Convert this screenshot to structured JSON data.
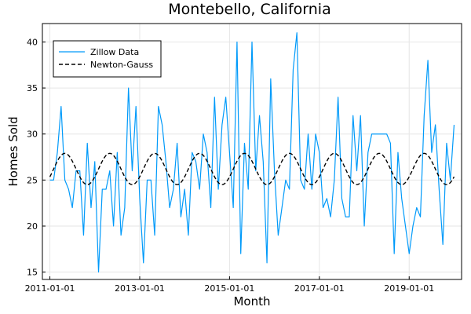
{
  "chart_data": {
    "type": "line",
    "title": "Montebello, California",
    "xlabel": "Month",
    "ylabel": "Homes Sold",
    "x_ticks": [
      "2011-01-01",
      "2013-01-01",
      "2015-01-01",
      "2017-01-01",
      "2019-01-01"
    ],
    "y_ticks": [
      15,
      20,
      25,
      30,
      35,
      40
    ],
    "xlim": [
      "2010-11-01",
      "2020-03-01"
    ],
    "ylim": [
      14.2,
      42
    ],
    "grid": true,
    "legend_position": "top-left",
    "series": [
      {
        "name": "Zillow Data",
        "style": "solid",
        "color": "#009AFA",
        "points": [
          [
            "2011-01-01",
            25
          ],
          [
            "2011-02-01",
            25
          ],
          [
            "2011-03-01",
            28
          ],
          [
            "2011-04-01",
            33
          ],
          [
            "2011-05-01",
            25
          ],
          [
            "2011-06-01",
            24
          ],
          [
            "2011-07-01",
            22
          ],
          [
            "2011-08-01",
            26
          ],
          [
            "2011-09-01",
            26
          ],
          [
            "2011-10-01",
            19
          ],
          [
            "2011-11-01",
            29
          ],
          [
            "2011-12-01",
            22
          ],
          [
            "2012-01-01",
            27
          ],
          [
            "2012-02-01",
            15
          ],
          [
            "2012-03-01",
            24
          ],
          [
            "2012-04-01",
            24
          ],
          [
            "2012-05-01",
            26
          ],
          [
            "2012-06-01",
            20
          ],
          [
            "2012-07-01",
            28
          ],
          [
            "2012-08-01",
            19
          ],
          [
            "2012-09-01",
            22
          ],
          [
            "2012-10-01",
            35
          ],
          [
            "2012-11-01",
            26
          ],
          [
            "2012-12-01",
            33
          ],
          [
            "2013-01-01",
            23
          ],
          [
            "2013-02-01",
            16
          ],
          [
            "2013-03-01",
            25
          ],
          [
            "2013-04-01",
            25
          ],
          [
            "2013-05-01",
            19
          ],
          [
            "2013-06-01",
            33
          ],
          [
            "2013-07-01",
            31
          ],
          [
            "2013-08-01",
            27
          ],
          [
            "2013-09-01",
            22
          ],
          [
            "2013-10-01",
            24
          ],
          [
            "2013-11-01",
            29
          ],
          [
            "2013-12-01",
            21
          ],
          [
            "2014-01-01",
            24
          ],
          [
            "2014-02-01",
            19
          ],
          [
            "2014-03-01",
            28
          ],
          [
            "2014-04-01",
            27
          ],
          [
            "2014-05-01",
            24
          ],
          [
            "2014-06-01",
            30
          ],
          [
            "2014-07-01",
            28
          ],
          [
            "2014-08-01",
            22
          ],
          [
            "2014-09-01",
            34
          ],
          [
            "2014-10-01",
            24
          ],
          [
            "2014-11-01",
            31
          ],
          [
            "2014-12-01",
            34
          ],
          [
            "2015-01-01",
            28
          ],
          [
            "2015-02-01",
            22
          ],
          [
            "2015-03-01",
            40
          ],
          [
            "2015-04-01",
            17
          ],
          [
            "2015-05-01",
            29
          ],
          [
            "2015-06-01",
            24
          ],
          [
            "2015-07-01",
            40
          ],
          [
            "2015-08-01",
            26
          ],
          [
            "2015-09-01",
            32
          ],
          [
            "2015-10-01",
            27
          ],
          [
            "2015-11-01",
            16
          ],
          [
            "2015-12-01",
            36
          ],
          [
            "2016-01-01",
            26
          ],
          [
            "2016-02-01",
            19
          ],
          [
            "2016-03-01",
            22
          ],
          [
            "2016-04-01",
            25
          ],
          [
            "2016-05-01",
            24
          ],
          [
            "2016-06-01",
            37
          ],
          [
            "2016-07-01",
            41
          ],
          [
            "2016-08-01",
            25
          ],
          [
            "2016-09-01",
            24
          ],
          [
            "2016-10-01",
            30
          ],
          [
            "2016-11-01",
            24
          ],
          [
            "2016-12-01",
            30
          ],
          [
            "2017-01-01",
            28
          ],
          [
            "2017-02-01",
            22
          ],
          [
            "2017-03-01",
            23
          ],
          [
            "2017-04-01",
            21
          ],
          [
            "2017-05-01",
            25
          ],
          [
            "2017-06-01",
            34
          ],
          [
            "2017-07-01",
            23
          ],
          [
            "2017-08-01",
            21
          ],
          [
            "2017-09-01",
            21
          ],
          [
            "2017-10-01",
            32
          ],
          [
            "2017-11-01",
            26
          ],
          [
            "2017-12-01",
            32
          ],
          [
            "2018-01-01",
            20
          ],
          [
            "2018-02-01",
            28
          ],
          [
            "2018-03-01",
            30
          ],
          [
            "2018-04-01",
            30
          ],
          [
            "2018-05-01",
            30
          ],
          [
            "2018-06-01",
            30
          ],
          [
            "2018-07-01",
            30
          ],
          [
            "2018-08-01",
            29
          ],
          [
            "2018-09-01",
            17
          ],
          [
            "2018-10-01",
            28
          ],
          [
            "2018-11-01",
            23
          ],
          [
            "2018-12-01",
            20
          ],
          [
            "2019-01-01",
            17
          ],
          [
            "2019-02-01",
            20
          ],
          [
            "2019-03-01",
            22
          ],
          [
            "2019-04-01",
            21
          ],
          [
            "2019-05-01",
            32
          ],
          [
            "2019-06-01",
            38
          ],
          [
            "2019-07-01",
            28
          ],
          [
            "2019-08-01",
            31
          ],
          [
            "2019-09-01",
            24
          ],
          [
            "2019-10-01",
            18
          ],
          [
            "2019-11-01",
            29
          ],
          [
            "2019-12-01",
            25
          ],
          [
            "2020-01-01",
            31
          ]
        ]
      },
      {
        "name": "Newton-Gauss",
        "style": "dashed",
        "color": "#000000",
        "model": {
          "type": "sinusoid",
          "mean": 26.2,
          "amplitude": 1.7,
          "period_months": 12,
          "peak_month": 4
        }
      }
    ]
  }
}
